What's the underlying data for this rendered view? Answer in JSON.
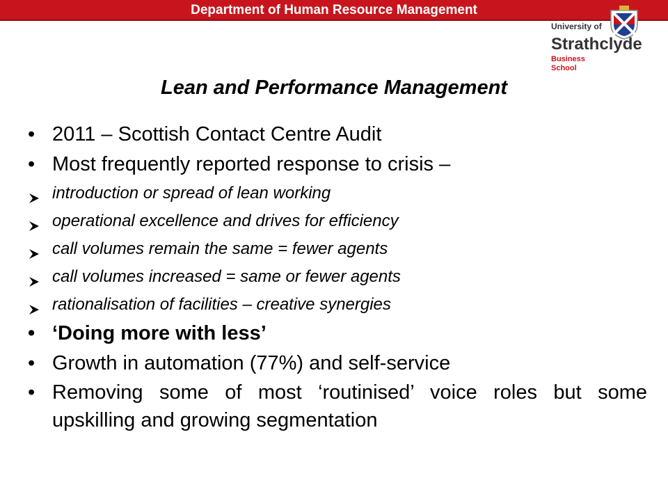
{
  "header": {
    "department": "Department of Human Resource Management",
    "logo_lines": [
      "University of",
      "Strathclyde",
      "Business",
      "School"
    ],
    "accent_color": "#c8151d"
  },
  "slide": {
    "title": "Lean and Performance Management",
    "items": [
      {
        "type": "bullet",
        "text": "2011 – Scottish Contact Centre Audit"
      },
      {
        "type": "bullet",
        "text": "Most frequently reported response to crisis –"
      },
      {
        "type": "arrow",
        "text": "introduction or spread of lean working"
      },
      {
        "type": "arrow",
        "text": "operational excellence and drives for efficiency"
      },
      {
        "type": "arrow",
        "text": "call volumes remain the same = fewer agents"
      },
      {
        "type": "arrow",
        "text": "call volumes increased = same or fewer agents"
      },
      {
        "type": "arrow",
        "text": "rationalisation of facilities – creative synergies"
      },
      {
        "type": "bullet",
        "text": "‘Doing more with less’"
      },
      {
        "type": "bullet",
        "text": "Growth in automation (77%) and self-service"
      },
      {
        "type": "bullet",
        "text": "Removing some of most ‘routinised’ voice roles but some upskilling and growing segmentation"
      }
    ]
  }
}
